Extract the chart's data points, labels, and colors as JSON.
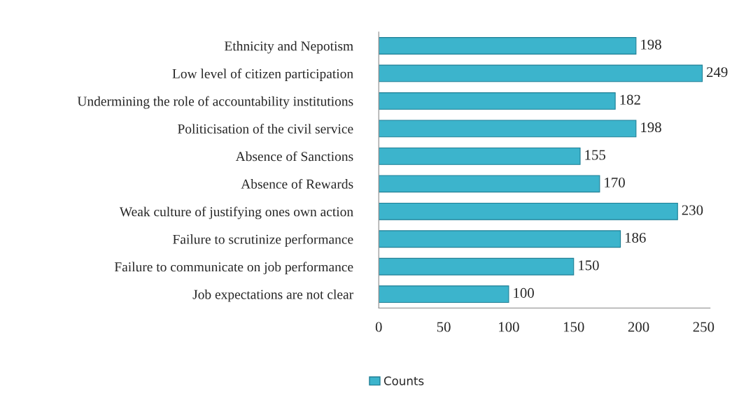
{
  "chart_data": {
    "type": "bar",
    "orientation": "horizontal",
    "categories": [
      "Ethnicity and Nepotism",
      "Low level of citizen participation",
      "Undermining the role of accountability institutions",
      "Politicisation of the civil service",
      "Absence of Sanctions",
      "Absence of Rewards",
      "Weak culture of justifying ones own action",
      "Failure to scrutinize performance",
      "Failure to communicate on job performance",
      "Job expectations are not clear"
    ],
    "series": [
      {
        "name": "Counts",
        "color": "#3cb4cc",
        "values": [
          198,
          249,
          182,
          198,
          155,
          170,
          230,
          186,
          150,
          100
        ]
      }
    ],
    "xlim": [
      0,
      255
    ],
    "xticks": [
      0,
      50,
      100,
      150,
      200,
      250
    ],
    "data_labels": true,
    "grid": false,
    "legend": "bottom"
  }
}
